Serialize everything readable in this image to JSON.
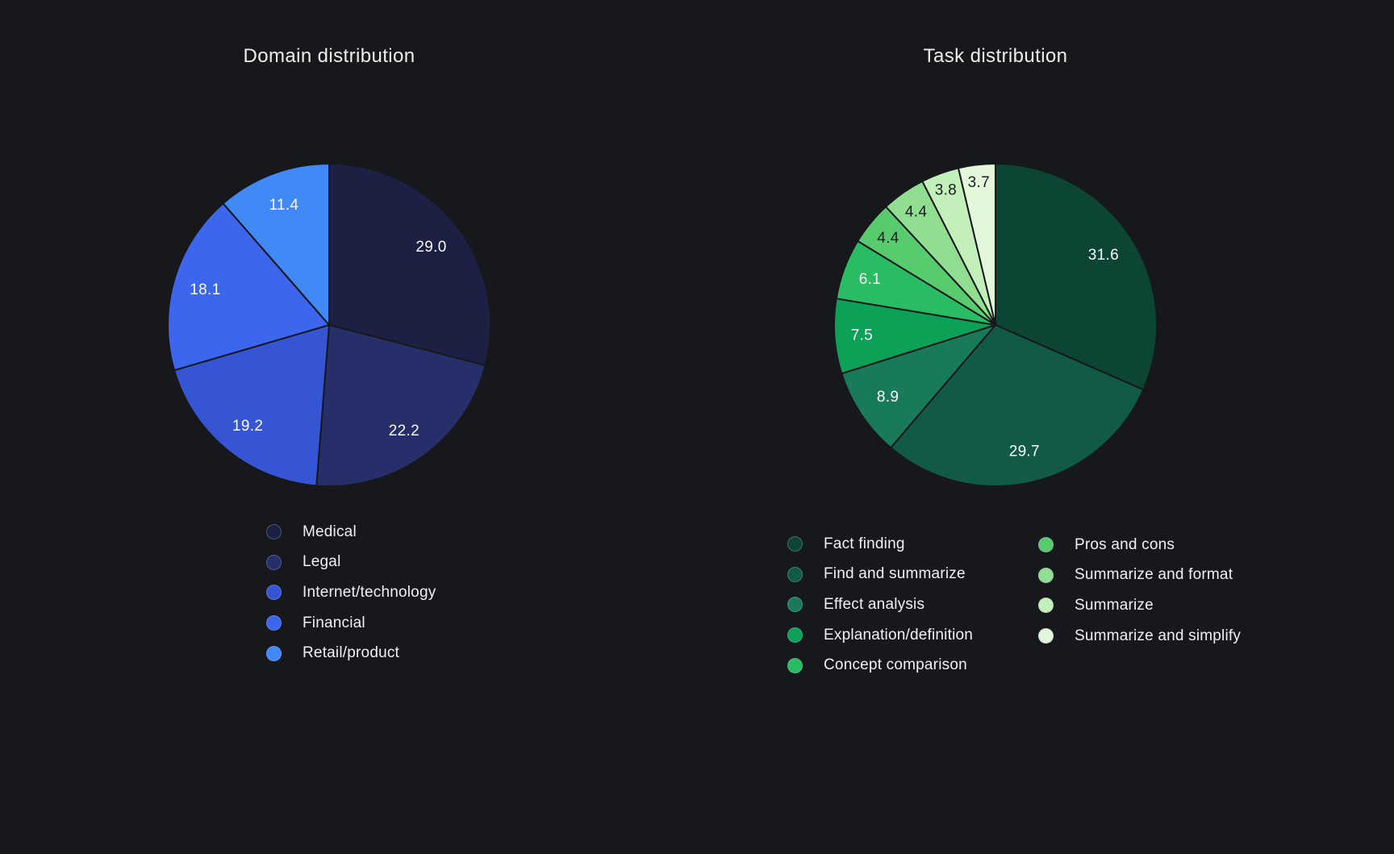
{
  "background_color": "#17181c",
  "chart_data": [
    {
      "type": "pie",
      "title": "Domain distribution",
      "unit": "percent",
      "start_angle": "12-oclock",
      "direction": "clockwise",
      "categories": [
        "Medical",
        "Legal",
        "Internet/technology",
        "Financial",
        "Retail/product"
      ],
      "values": [
        29.0,
        22.2,
        19.2,
        18.1,
        11.4
      ],
      "colors": [
        "#1c2144",
        "#272f6a",
        "#3655d5",
        "#3b66ed",
        "#4089f6"
      ],
      "value_label_colors": [
        "#fafbfc",
        "#fafbfc",
        "#fafbfc",
        "#fafbfc",
        "#fafbfc"
      ],
      "legend_position": "below-chart-left",
      "legend_column_split": [
        5
      ]
    },
    {
      "type": "pie",
      "title": "Task distribution",
      "unit": "percent",
      "start_angle": "12-oclock",
      "direction": "clockwise",
      "categories": [
        "Fact finding",
        "Find and summarize",
        "Effect analysis",
        "Explanation/definition",
        "Concept comparison",
        "Pros and cons",
        "Summarize and format",
        "Summarize",
        "Summarize and simplify"
      ],
      "values": [
        31.6,
        29.7,
        8.9,
        7.5,
        6.1,
        4.4,
        4.4,
        3.8,
        3.7
      ],
      "colors": [
        "#0d4535",
        "#115b46",
        "#187a58",
        "#0ba157",
        "#2abc62",
        "#58cb6f",
        "#91de93",
        "#c2efba",
        "#e3f8da"
      ],
      "value_label_colors": [
        "#fafbfc",
        "#fafbfc",
        "#fafbfc",
        "#fafbfc",
        "#fafbfc",
        "#1a1d22",
        "#1a1d22",
        "#1a1d22",
        "#1a1d22"
      ],
      "legend_position": "below-chart-two-columns",
      "legend_column_split": [
        5,
        4
      ]
    }
  ]
}
